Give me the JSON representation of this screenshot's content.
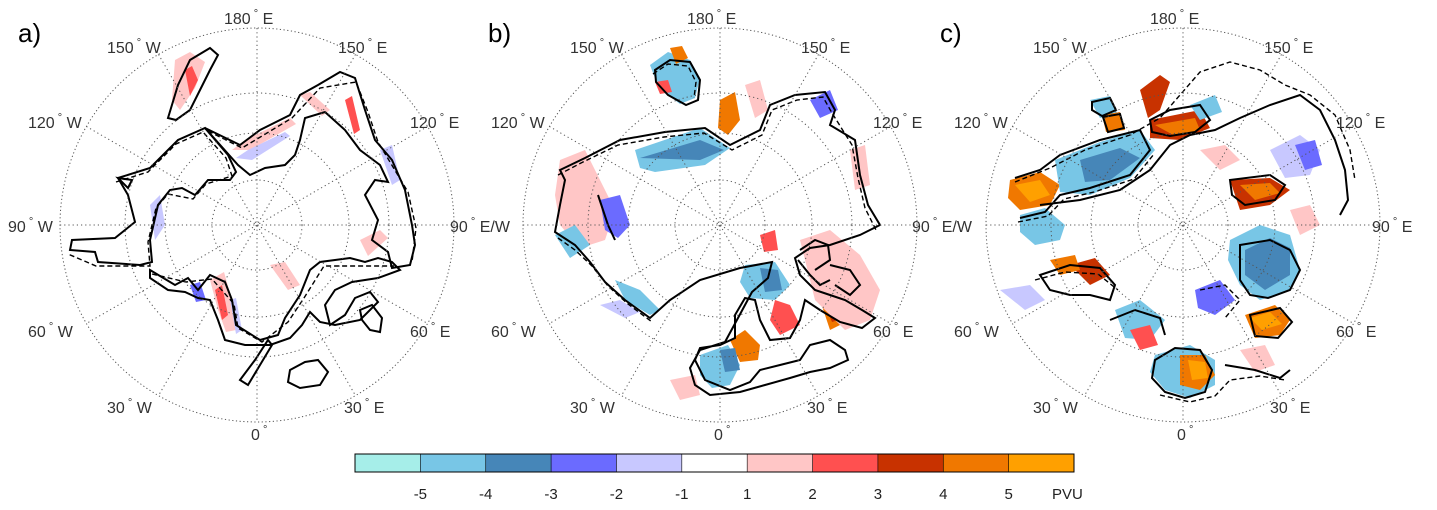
{
  "panels": [
    {
      "letter": "a)",
      "center_lon": "180 E"
    },
    {
      "letter": "b)",
      "center_lon": "180 E"
    },
    {
      "letter": "c)",
      "center_lon": "180 E"
    }
  ],
  "lon_labels": {
    "n180": "180",
    "n180_suffix": "E",
    "w150": "150",
    "w150_suffix": "W",
    "e150": "150",
    "e150_suffix": "E",
    "w120": "120",
    "w120_suffix": "W",
    "e120": "120",
    "e120_suffix": "E",
    "w90": "90",
    "w90_suffix": "W",
    "e90a": "90",
    "e90a_suffix": "E/W",
    "e90c": "90",
    "e90c_suffix": "E",
    "w60": "60",
    "w60_suffix": "W",
    "e60": "60",
    "e60_suffix": "E",
    "w30": "30",
    "w30_suffix": "W",
    "e30": "30",
    "e30_suffix": "E",
    "s0": "0"
  },
  "colorbar": {
    "colors": [
      "#a6eee9",
      "#78c6e6",
      "#4686b8",
      "#6b6bff",
      "#c8c8ff",
      "#ffffff",
      "#ffc6c6",
      "#ff5050",
      "#c83200",
      "#f07800",
      "#ffa000"
    ],
    "tick_labels": [
      "-5",
      "-4",
      "-3",
      "-2",
      "-1",
      "1",
      "2",
      "3",
      "4",
      "5"
    ],
    "unit": "PVU"
  },
  "colors": {
    "grid": "#555555",
    "contour": "#000000"
  }
}
